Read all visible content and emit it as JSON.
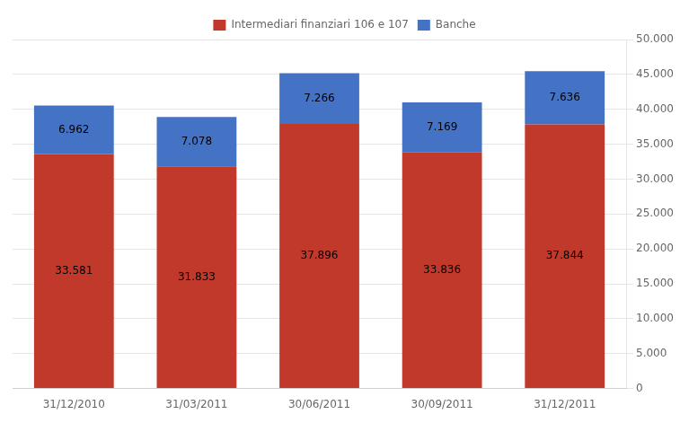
{
  "chart_data": {
    "type": "bar",
    "stacked": true,
    "categories": [
      "31/12/2010",
      "31/03/2011",
      "30/06/2011",
      "30/09/2011",
      "31/12/2011"
    ],
    "series": [
      {
        "name": "Intermediari finanziari 106 e 107",
        "color": "#C0392B",
        "values": [
          33581,
          31833,
          37896,
          33836,
          37844
        ],
        "value_labels": [
          "33.581",
          "31.833",
          "37.896",
          "33.836",
          "37.844"
        ]
      },
      {
        "name": "Banche",
        "color": "#4472C4",
        "values": [
          6962,
          7078,
          7266,
          7169,
          7636
        ],
        "value_labels": [
          "6.962",
          "7.078",
          "7.266",
          "7.169",
          "7.636"
        ]
      }
    ],
    "ylim": [
      0,
      50000
    ],
    "yticks": [
      0,
      {
        "value": 5000,
        "label": "5.000"
      },
      {
        "value": 10000,
        "label": "10.000"
      },
      {
        "value": 15000,
        "label": "15.000"
      },
      {
        "value": 20000,
        "label": "20.000"
      },
      {
        "value": 25000,
        "label": "25.000"
      },
      {
        "value": 30000,
        "label": "30.000"
      },
      {
        "value": 35000,
        "label": "35.000"
      },
      {
        "value": 40000,
        "label": "40.000"
      },
      {
        "value": 45000,
        "label": "45.000"
      },
      {
        "value": 50000,
        "label": "50.000"
      }
    ],
    "grid": true,
    "legend": "top",
    "data_labels": true
  }
}
